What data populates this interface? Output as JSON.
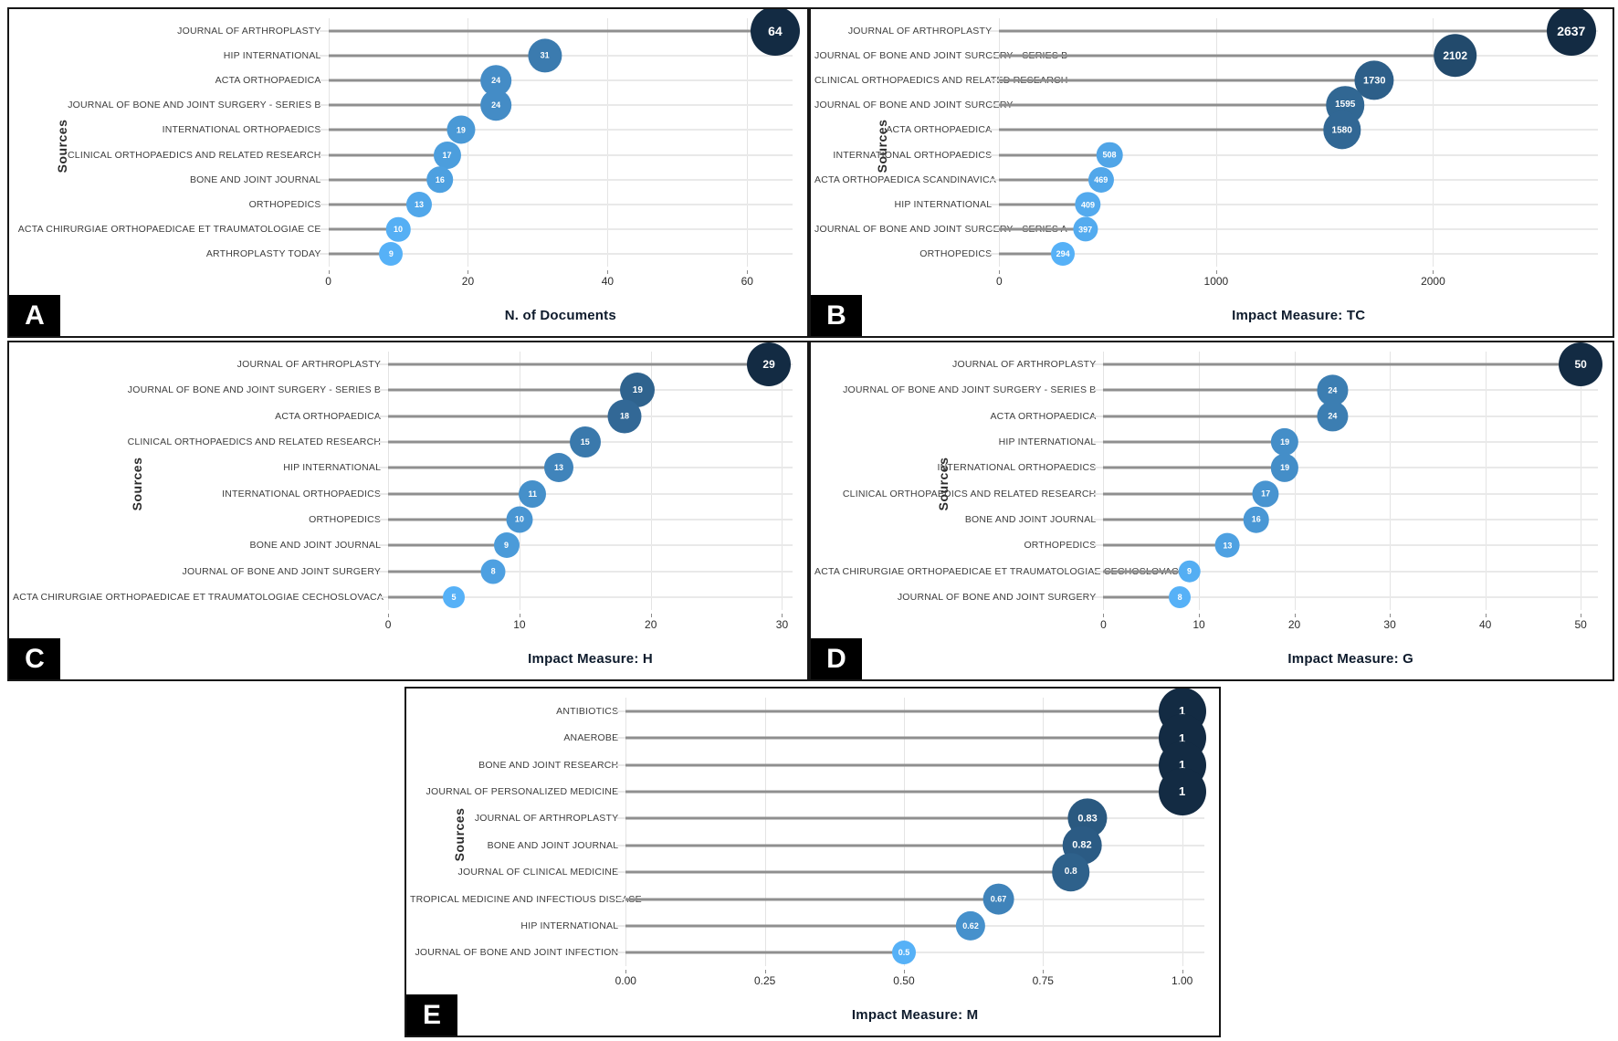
{
  "figure_title": "",
  "style": {
    "bubble_gradient_low": "#56B1F7",
    "bubble_gradient_high": "#132B43",
    "stem_color": "#8f8f8f",
    "row_line_color": "#e9e9e9",
    "grid_line_color": "#e4e4e4",
    "panel_border_color": "#161616",
    "badge_bg": "#000000",
    "badge_text": "#ffffff",
    "bubble_text": "#ffffff",
    "category_label_color": "#3d3d3d",
    "tick_label_color": "#2b2b2b",
    "axis_title_color": "#0e1b2c"
  },
  "chart_data": [
    {
      "panel": "A",
      "type": "bar",
      "variant": "lollipop",
      "orientation": "horizontal",
      "title": "",
      "xlabel": "N. of Documents",
      "ylabel": "Sources",
      "grid": true,
      "legend": false,
      "xlim": [
        0,
        66.5
      ],
      "xticks": [
        0,
        20,
        40,
        60
      ],
      "xtick_labels": [
        "0",
        "20",
        "40",
        "60"
      ],
      "categories": [
        "JOURNAL OF ARTHROPLASTY",
        "HIP INTERNATIONAL",
        "ACTA ORTHOPAEDICA",
        "JOURNAL OF BONE AND JOINT SURGERY - SERIES B",
        "INTERNATIONAL ORTHOPAEDICS",
        "CLINICAL ORTHOPAEDICS AND RELATED RESEARCH",
        "BONE AND JOINT JOURNAL",
        "ORTHOPEDICS",
        "ACTA CHIRURGIAE ORTHOPAEDICAE ET TRAUMATOLOGIAE CE",
        "ARTHROPLASTY TODAY"
      ],
      "values": [
        64,
        31,
        24,
        24,
        19,
        17,
        16,
        13,
        10,
        9
      ]
    },
    {
      "panel": "B",
      "type": "bar",
      "variant": "lollipop",
      "orientation": "horizontal",
      "title": "",
      "xlabel": "Impact Measure: TC",
      "ylabel": "Sources",
      "grid": true,
      "legend": false,
      "xlim": [
        0,
        2760
      ],
      "xticks": [
        0,
        1000,
        2000
      ],
      "xtick_labels": [
        "0",
        "1000",
        "2000"
      ],
      "categories": [
        "JOURNAL OF ARTHROPLASTY",
        "JOURNAL OF BONE AND JOINT SURGERY - SERIES B",
        "CLINICAL ORTHOPAEDICS AND RELATED RESEARCH",
        "JOURNAL OF BONE AND JOINT SURGERY",
        "ACTA ORTHOPAEDICA",
        "INTERNATIONAL ORTHOPAEDICS",
        "ACTA ORTHOPAEDICA SCANDINAVICA",
        "HIP INTERNATIONAL",
        "JOURNAL OF BONE AND JOINT SURGERY - SERIES A",
        "ORTHOPEDICS"
      ],
      "values": [
        2637,
        2102,
        1730,
        1595,
        1580,
        508,
        469,
        409,
        397,
        294
      ]
    },
    {
      "panel": "C",
      "type": "bar",
      "variant": "lollipop",
      "orientation": "horizontal",
      "title": "",
      "xlabel": "Impact Measure: H",
      "ylabel": "Sources",
      "grid": true,
      "legend": false,
      "xlim": [
        0,
        30.8
      ],
      "xticks": [
        0,
        10,
        20,
        30
      ],
      "xtick_labels": [
        "0",
        "10",
        "20",
        "30"
      ],
      "categories": [
        "JOURNAL OF ARTHROPLASTY",
        "JOURNAL OF BONE AND JOINT SURGERY - SERIES B",
        "ACTA ORTHOPAEDICA",
        "CLINICAL ORTHOPAEDICS AND RELATED RESEARCH",
        "HIP INTERNATIONAL",
        "INTERNATIONAL ORTHOPAEDICS",
        "ORTHOPEDICS",
        "BONE AND JOINT JOURNAL",
        "JOURNAL OF BONE AND JOINT SURGERY",
        "ACTA CHIRURGIAE ORTHOPAEDICAE ET TRAUMATOLOGIAE CECHOSLOVACA"
      ],
      "values": [
        29,
        19,
        18,
        15,
        13,
        11,
        10,
        9,
        8,
        5
      ]
    },
    {
      "panel": "D",
      "type": "bar",
      "variant": "lollipop",
      "orientation": "horizontal",
      "title": "",
      "xlabel": "Impact Measure: G",
      "ylabel": "Sources",
      "grid": true,
      "legend": false,
      "xlim": [
        0,
        51.8
      ],
      "xticks": [
        0,
        10,
        20,
        30,
        40,
        50
      ],
      "xtick_labels": [
        "0",
        "10",
        "20",
        "30",
        "40",
        "50"
      ],
      "categories": [
        "JOURNAL OF ARTHROPLASTY",
        "JOURNAL OF BONE AND JOINT SURGERY - SERIES B",
        "ACTA ORTHOPAEDICA",
        "HIP INTERNATIONAL",
        "INTERNATIONAL ORTHOPAEDICS",
        "CLINICAL ORTHOPAEDICS AND RELATED RESEARCH",
        "BONE AND JOINT JOURNAL",
        "ORTHOPEDICS",
        "ACTA CHIRURGIAE ORTHOPAEDICAE ET TRAUMATOLOGIAE CECHOSLOVACA",
        "JOURNAL OF BONE AND JOINT SURGERY"
      ],
      "values": [
        50,
        24,
        24,
        19,
        19,
        17,
        16,
        13,
        9,
        8
      ]
    },
    {
      "panel": "E",
      "type": "bar",
      "variant": "lollipop",
      "orientation": "horizontal",
      "title": "",
      "xlabel": "Impact Measure: M",
      "ylabel": "Sources",
      "grid": true,
      "legend": false,
      "xlim": [
        0,
        1.04
      ],
      "xticks": [
        0,
        0.25,
        0.5,
        0.75,
        1
      ],
      "xtick_labels": [
        "0.00",
        "0.25",
        "0.50",
        "0.75",
        "1.00"
      ],
      "categories": [
        "ANTIBIOTICS",
        "ANAEROBE",
        "BONE AND JOINT RESEARCH",
        "JOURNAL OF PERSONALIZED MEDICINE",
        "JOURNAL OF ARTHROPLASTY",
        "BONE AND JOINT JOURNAL",
        "JOURNAL OF CLINICAL MEDICINE",
        "TROPICAL MEDICINE AND INFECTIOUS DISEASE",
        "HIP INTERNATIONAL",
        "JOURNAL OF BONE AND JOINT INFECTION"
      ],
      "values": [
        1,
        1,
        1,
        1,
        0.83,
        0.82,
        0.8,
        0.67,
        0.62,
        0.5
      ]
    }
  ]
}
